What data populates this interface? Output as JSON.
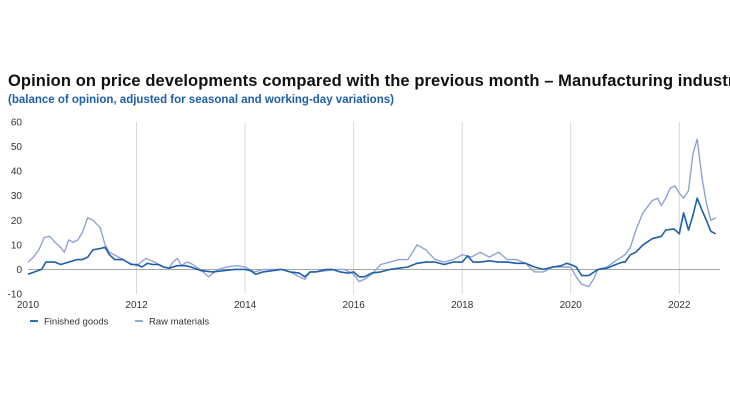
{
  "chart_data": {
    "type": "line",
    "title": "Opinion on price developments compared with the previous month – Manufacturing industry",
    "subtitle": "(balance of opinion, adjusted for seasonal and working-day variations)",
    "xlim": [
      2010,
      2022.75
    ],
    "ylim": [
      -10,
      60
    ],
    "x_ticks": [
      2010,
      2012,
      2014,
      2016,
      2018,
      2020,
      2022
    ],
    "y_ticks": [
      -10,
      0,
      10,
      20,
      30,
      40,
      50,
      60
    ],
    "grid": "vertical",
    "legend_position": "bottom-left",
    "series": [
      {
        "name": "Finished goods",
        "color": "#1f5fa8",
        "points": [
          [
            2010.0,
            -2
          ],
          [
            2010.25,
            0
          ],
          [
            2010.33,
            3
          ],
          [
            2010.5,
            3
          ],
          [
            2010.6,
            2
          ],
          [
            2010.75,
            3
          ],
          [
            2010.9,
            4
          ],
          [
            2011.0,
            4
          ],
          [
            2011.1,
            5
          ],
          [
            2011.2,
            8
          ],
          [
            2011.33,
            8.5
          ],
          [
            2011.42,
            9
          ],
          [
            2011.5,
            6
          ],
          [
            2011.6,
            4
          ],
          [
            2011.75,
            4
          ],
          [
            2011.9,
            2
          ],
          [
            2012.0,
            2
          ],
          [
            2012.1,
            1
          ],
          [
            2012.2,
            2.5
          ],
          [
            2012.3,
            2
          ],
          [
            2012.4,
            2
          ],
          [
            2012.5,
            1
          ],
          [
            2012.6,
            0.5
          ],
          [
            2012.75,
            1.5
          ],
          [
            2012.9,
            1.5
          ],
          [
            2013.0,
            1
          ],
          [
            2013.2,
            -0.5
          ],
          [
            2013.4,
            -1
          ],
          [
            2013.6,
            -0.5
          ],
          [
            2013.8,
            0
          ],
          [
            2014.0,
            0
          ],
          [
            2014.1,
            -0.5
          ],
          [
            2014.2,
            -2
          ],
          [
            2014.33,
            -1
          ],
          [
            2014.5,
            -0.5
          ],
          [
            2014.67,
            0
          ],
          [
            2014.83,
            -1
          ],
          [
            2015.0,
            -1.5
          ],
          [
            2015.1,
            -3
          ],
          [
            2015.2,
            -1
          ],
          [
            2015.3,
            -1
          ],
          [
            2015.5,
            0
          ],
          [
            2015.6,
            0
          ],
          [
            2015.75,
            -1
          ],
          [
            2015.9,
            -1.5
          ],
          [
            2016.0,
            -1
          ],
          [
            2016.1,
            -3
          ],
          [
            2016.2,
            -3
          ],
          [
            2016.33,
            -1.5
          ],
          [
            2016.5,
            -1
          ],
          [
            2016.67,
            0
          ],
          [
            2016.83,
            0.5
          ],
          [
            2017.0,
            1
          ],
          [
            2017.17,
            2.5
          ],
          [
            2017.33,
            3
          ],
          [
            2017.5,
            3
          ],
          [
            2017.67,
            2
          ],
          [
            2017.83,
            3
          ],
          [
            2018.0,
            3
          ],
          [
            2018.1,
            5.5
          ],
          [
            2018.2,
            3
          ],
          [
            2018.33,
            3
          ],
          [
            2018.5,
            3.5
          ],
          [
            2018.67,
            3
          ],
          [
            2018.83,
            3
          ],
          [
            2019.0,
            2.5
          ],
          [
            2019.17,
            2.5
          ],
          [
            2019.33,
            1
          ],
          [
            2019.5,
            0
          ],
          [
            2019.67,
            1
          ],
          [
            2019.83,
            1.5
          ],
          [
            2019.92,
            2.5
          ],
          [
            2020.0,
            2
          ],
          [
            2020.1,
            1
          ],
          [
            2020.2,
            -2.5
          ],
          [
            2020.33,
            -2.5
          ],
          [
            2020.5,
            0
          ],
          [
            2020.67,
            0.5
          ],
          [
            2020.83,
            2
          ],
          [
            2020.95,
            3
          ],
          [
            2021.0,
            3
          ],
          [
            2021.1,
            6
          ],
          [
            2021.2,
            7
          ],
          [
            2021.33,
            10
          ],
          [
            2021.5,
            12.5
          ],
          [
            2021.67,
            13.5
          ],
          [
            2021.75,
            16
          ],
          [
            2021.9,
            16.5
          ],
          [
            2022.0,
            14.5
          ],
          [
            2022.08,
            23
          ],
          [
            2022.17,
            16
          ],
          [
            2022.25,
            22
          ],
          [
            2022.33,
            29
          ],
          [
            2022.42,
            24
          ],
          [
            2022.5,
            20
          ],
          [
            2022.58,
            15.5
          ],
          [
            2022.67,
            14.5
          ]
        ]
      },
      {
        "name": "Raw materials",
        "color": "#8fa3d3",
        "points": [
          [
            2010.0,
            3
          ],
          [
            2010.1,
            5
          ],
          [
            2010.2,
            8
          ],
          [
            2010.3,
            13
          ],
          [
            2010.4,
            13.5
          ],
          [
            2010.5,
            11
          ],
          [
            2010.6,
            9
          ],
          [
            2010.67,
            7
          ],
          [
            2010.75,
            12
          ],
          [
            2010.83,
            11
          ],
          [
            2010.92,
            12
          ],
          [
            2011.0,
            15
          ],
          [
            2011.1,
            21
          ],
          [
            2011.2,
            20
          ],
          [
            2011.33,
            17
          ],
          [
            2011.42,
            10
          ],
          [
            2011.5,
            7
          ],
          [
            2011.67,
            5
          ],
          [
            2011.83,
            3
          ],
          [
            2012.0,
            1.5
          ],
          [
            2012.17,
            4.5
          ],
          [
            2012.33,
            3
          ],
          [
            2012.5,
            1
          ],
          [
            2012.6,
            0.5
          ],
          [
            2012.67,
            3
          ],
          [
            2012.75,
            4.5
          ],
          [
            2012.83,
            1.5
          ],
          [
            2012.92,
            3
          ],
          [
            2013.0,
            2.5
          ],
          [
            2013.17,
            0
          ],
          [
            2013.33,
            -3
          ],
          [
            2013.5,
            0
          ],
          [
            2013.67,
            1
          ],
          [
            2013.83,
            1.5
          ],
          [
            2014.0,
            1
          ],
          [
            2014.17,
            -1
          ],
          [
            2014.33,
            0
          ],
          [
            2014.5,
            0
          ],
          [
            2014.67,
            0
          ],
          [
            2014.83,
            -1
          ],
          [
            2015.0,
            -3
          ],
          [
            2015.1,
            -4
          ],
          [
            2015.2,
            -1
          ],
          [
            2015.33,
            -1
          ],
          [
            2015.5,
            -0.5
          ],
          [
            2015.67,
            0
          ],
          [
            2015.83,
            0
          ],
          [
            2016.0,
            -2
          ],
          [
            2016.1,
            -5
          ],
          [
            2016.2,
            -4
          ],
          [
            2016.33,
            -2
          ],
          [
            2016.5,
            2
          ],
          [
            2016.67,
            3
          ],
          [
            2016.83,
            4
          ],
          [
            2017.0,
            4
          ],
          [
            2017.17,
            10
          ],
          [
            2017.33,
            8
          ],
          [
            2017.5,
            4
          ],
          [
            2017.67,
            3
          ],
          [
            2017.83,
            4
          ],
          [
            2018.0,
            6
          ],
          [
            2018.17,
            5
          ],
          [
            2018.33,
            7
          ],
          [
            2018.5,
            5
          ],
          [
            2018.67,
            7
          ],
          [
            2018.83,
            4
          ],
          [
            2019.0,
            4
          ],
          [
            2019.17,
            2.5
          ],
          [
            2019.33,
            -1
          ],
          [
            2019.5,
            -1
          ],
          [
            2019.67,
            1
          ],
          [
            2019.83,
            1
          ],
          [
            2020.0,
            1
          ],
          [
            2020.1,
            -3
          ],
          [
            2020.2,
            -6
          ],
          [
            2020.33,
            -7
          ],
          [
            2020.42,
            -4
          ],
          [
            2020.5,
            0
          ],
          [
            2020.67,
            1
          ],
          [
            2020.83,
            3.5
          ],
          [
            2021.0,
            6
          ],
          [
            2021.1,
            9
          ],
          [
            2021.2,
            16
          ],
          [
            2021.33,
            23
          ],
          [
            2021.5,
            28
          ],
          [
            2021.6,
            29
          ],
          [
            2021.67,
            26
          ],
          [
            2021.75,
            29
          ],
          [
            2021.83,
            33
          ],
          [
            2021.92,
            34
          ],
          [
            2022.0,
            31
          ],
          [
            2022.08,
            29
          ],
          [
            2022.17,
            32
          ],
          [
            2022.25,
            47
          ],
          [
            2022.33,
            53
          ],
          [
            2022.42,
            37
          ],
          [
            2022.5,
            27
          ],
          [
            2022.58,
            20
          ],
          [
            2022.67,
            21
          ]
        ]
      }
    ]
  }
}
